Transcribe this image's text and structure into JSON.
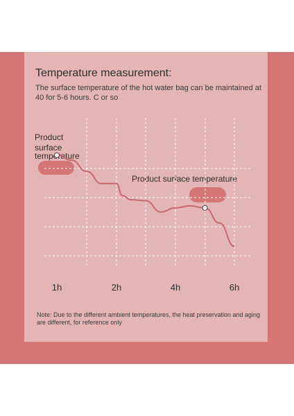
{
  "header": {
    "title": "Temperature measurement:",
    "subtitle": "The surface temperature of the hot water bag can be maintained at 40 for 5-6 hours. C or so"
  },
  "labels": {
    "left_label_line1": "Product",
    "left_label_line2": "surface",
    "left_label_line3": "temperature",
    "right_label": "Product surface temperature"
  },
  "footer": {
    "note": "Note: Due to the different ambient temperatures, the heat preservation and aging are different, for reference only"
  },
  "colors": {
    "accent": "#d47576",
    "panel": "#e3b5b5",
    "line": "#c8696c"
  },
  "chart_data": {
    "type": "line",
    "x_ticks": [
      "1h",
      "2h",
      "4h",
      "6h"
    ],
    "series": [
      {
        "values": [
          [
            1.0,
            1.0
          ],
          [
            1.25,
            0.95
          ],
          [
            1.5,
            0.84
          ],
          [
            1.75,
            0.72
          ],
          [
            2.0,
            0.72
          ],
          [
            2.2,
            0.6
          ],
          [
            2.5,
            0.56
          ],
          [
            3.0,
            0.55
          ],
          [
            3.5,
            0.44
          ],
          [
            4.0,
            0.48
          ],
          [
            4.5,
            0.5
          ],
          [
            5.0,
            0.48
          ],
          [
            5.5,
            0.33
          ],
          [
            6.0,
            0.1
          ]
        ]
      }
    ],
    "markers_at_x": [
      1.0,
      5.0
    ],
    "xlim": [
      0.8,
      6.2
    ],
    "ylim": [
      0,
      1.3
    ],
    "grid": true,
    "grid_style": "dashed"
  }
}
